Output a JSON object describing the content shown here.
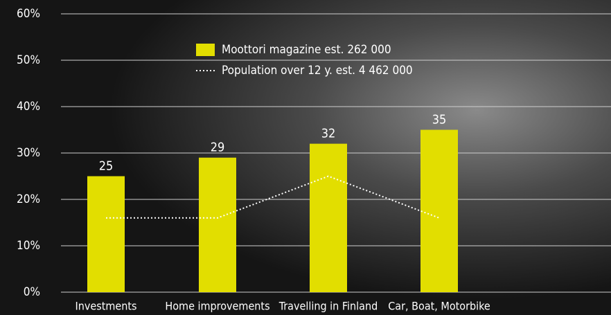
{
  "chart_data": {
    "type": "bar",
    "categories": [
      "Investments",
      "Home improvements",
      "Travelling in Finland",
      "Car, Boat, Motorbike"
    ],
    "series": [
      {
        "name": "Moottori magazine est. 262 000",
        "color": "#e2de00",
        "values": [
          25,
          29,
          32,
          35
        ]
      },
      {
        "name": "Population over 12 y. est. 4 462 000",
        "color": "#ffffff",
        "type": "line",
        "values": [
          16,
          16,
          25,
          16
        ]
      }
    ],
    "ylim": [
      0,
      60
    ],
    "yticks": [
      {
        "value": 0,
        "label": "0%"
      },
      {
        "value": 10,
        "label": "10%"
      },
      {
        "value": 20,
        "label": "20%"
      },
      {
        "value": 30,
        "label": "30%"
      },
      {
        "value": 40,
        "label": "40%"
      },
      {
        "value": 50,
        "label": "50%"
      },
      {
        "value": 60,
        "label": "60%"
      }
    ],
    "grid": true,
    "legend": "top"
  }
}
